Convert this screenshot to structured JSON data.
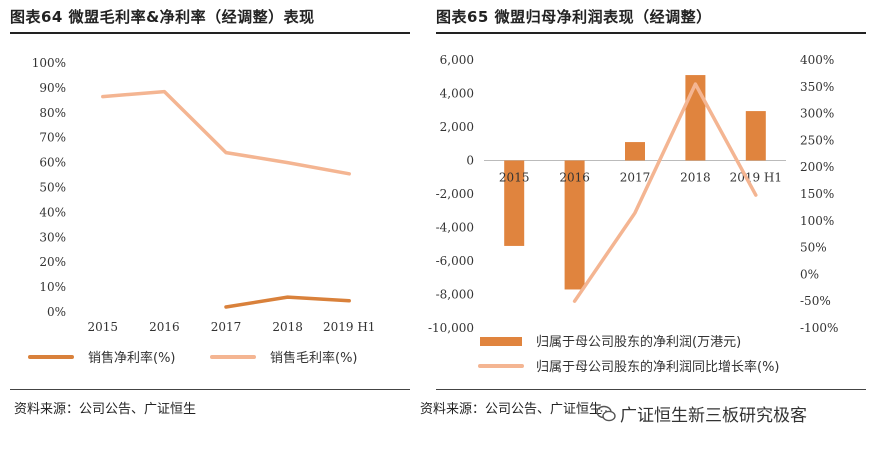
{
  "left": {
    "title": "图表64 微盟毛利率&净利率（经调整）表现",
    "source": "资料来源：公司公告、广证恒生"
  },
  "right": {
    "title": "图表65 微盟归母净利润表现（经调整）",
    "source": "资料来源：公司公告、广证恒生"
  },
  "watermark": {
    "text": "广证恒生新三板研究极客",
    "icon": "wechat-icon"
  },
  "colors": {
    "orange": "#D9813B",
    "peach": "#F4B592",
    "bar": "#E0843E"
  },
  "chart_data": [
    {
      "type": "line",
      "title": "",
      "categories": [
        "2015",
        "2016",
        "2017",
        "2018",
        "2019 H1"
      ],
      "ylim": [
        0,
        100
      ],
      "y_ticks": [
        "0%",
        "10%",
        "20%",
        "30%",
        "40%",
        "50%",
        "60%",
        "70%",
        "80%",
        "90%",
        "100%"
      ],
      "grid": false,
      "legend_position": "bottom",
      "series": [
        {
          "name": "销售净利率(%)",
          "color": "#D9813B",
          "values": [
            null,
            null,
            2,
            6,
            4.5
          ]
        },
        {
          "name": "销售毛利率(%)",
          "color": "#F4B592",
          "values": [
            86.5,
            88.5,
            64,
            60,
            55.5
          ]
        }
      ]
    },
    {
      "type": "bar+line",
      "title": "",
      "categories": [
        "2015",
        "2016",
        "2017",
        "2018",
        "2019 H1"
      ],
      "ylim_left": [
        -10000,
        6000
      ],
      "y_ticks_left": [
        "-10,000",
        "-8,000",
        "-6,000",
        "-4,000",
        "-2,000",
        "0",
        "2,000",
        "4,000",
        "6,000"
      ],
      "ylim_right": [
        -100,
        400
      ],
      "y_ticks_right": [
        "-100%",
        "-50%",
        "0%",
        "50%",
        "100%",
        "150%",
        "200%",
        "250%",
        "300%",
        "350%",
        "400%"
      ],
      "grid": false,
      "legend_position": "bottom",
      "series": [
        {
          "name": "归属于母公司股东的净利润(万港元)",
          "type": "bar",
          "axis": "left",
          "color": "#E0843E",
          "values": [
            -5100,
            -7700,
            1100,
            5100,
            2950
          ]
        },
        {
          "name": "归属于母公司股东的净利润同比增长率(%)",
          "type": "line",
          "axis": "right",
          "color": "#F4B592",
          "values": [
            null,
            -50,
            115,
            355,
            148
          ]
        }
      ]
    }
  ]
}
